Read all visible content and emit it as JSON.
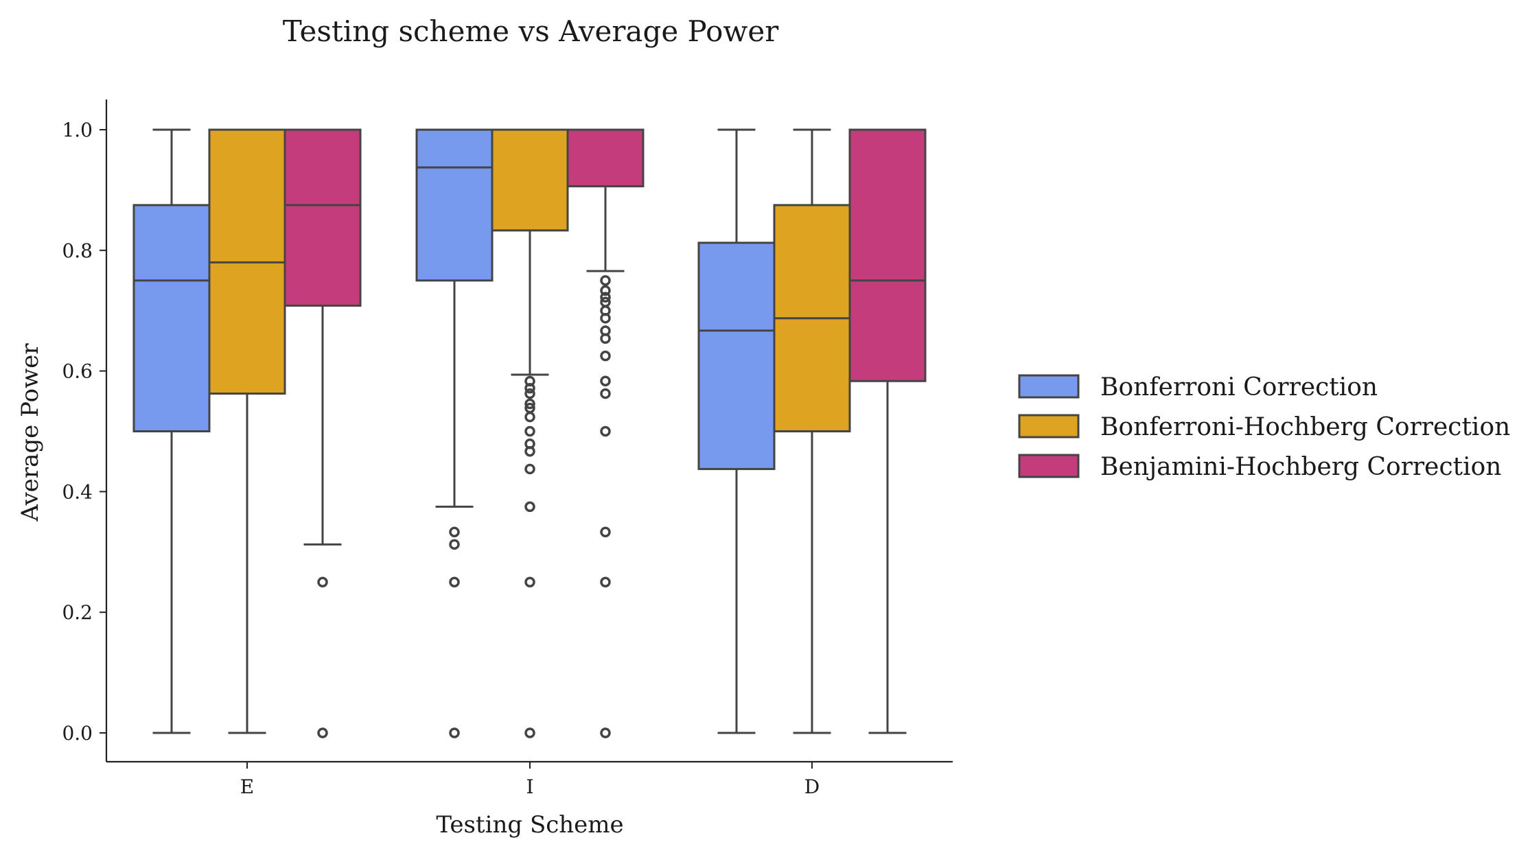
{
  "chart_data": {
    "type": "box",
    "title": "Testing scheme vs Average Power",
    "xlabel": "Testing Scheme",
    "ylabel": "Average Power",
    "categories": [
      "E",
      "I",
      "D"
    ],
    "ylim": [
      -0.05,
      1.05
    ],
    "yticks": [
      0.0,
      0.2,
      0.4,
      0.6,
      0.8,
      1.0
    ],
    "ytick_labels": [
      "0.0",
      "0.2",
      "0.4",
      "0.6",
      "0.8",
      "1.0"
    ],
    "legend_position": "right",
    "grid": false,
    "series": [
      {
        "name": "Bonferroni Correction",
        "color": "#7799ee",
        "boxes": [
          {
            "q1": 0.5,
            "median": 0.75,
            "q3": 0.875,
            "whisker_low": 0.0,
            "whisker_high": 1.0,
            "outliers": []
          },
          {
            "q1": 0.75,
            "median": 0.9375,
            "q3": 1.0,
            "whisker_low": 0.375,
            "whisker_high": 1.0,
            "outliers": [
              0.333,
              0.3125,
              0.25,
              0.0
            ]
          },
          {
            "q1": 0.4375,
            "median": 0.667,
            "q3": 0.8125,
            "whisker_low": 0.0,
            "whisker_high": 1.0,
            "outliers": []
          }
        ]
      },
      {
        "name": "Bonferroni-Hochberg Correction",
        "color": "#dfa322",
        "boxes": [
          {
            "q1": 0.5625,
            "median": 0.78,
            "q3": 1.0,
            "whisker_low": 0.0,
            "whisker_high": 1.0,
            "outliers": []
          },
          {
            "q1": 0.833,
            "median": 1.0,
            "q3": 1.0,
            "whisker_low": 0.5938,
            "whisker_high": 1.0,
            "outliers": [
              0.583,
              0.5714,
              0.5625,
              0.5455,
              0.5385,
              0.5238,
              0.5,
              0.4792,
              0.4667,
              0.4375,
              0.375,
              0.25,
              0.0
            ]
          },
          {
            "q1": 0.5,
            "median": 0.6875,
            "q3": 0.875,
            "whisker_low": 0.0,
            "whisker_high": 1.0,
            "outliers": []
          }
        ]
      },
      {
        "name": "Benjamini-Hochberg Correction",
        "color": "#c43c7b",
        "boxes": [
          {
            "q1": 0.7083,
            "median": 0.875,
            "q3": 1.0,
            "whisker_low": 0.3125,
            "whisker_high": 1.0,
            "outliers": [
              0.25,
              0.0
            ]
          },
          {
            "q1": 0.9062,
            "median": 1.0,
            "q3": 1.0,
            "whisker_low": 0.7656,
            "whisker_high": 1.0,
            "outliers": [
              0.75,
              0.7333,
              0.7222,
              0.7143,
              0.7,
              0.6875,
              0.6667,
              0.6538,
              0.625,
              0.5833,
              0.5625,
              0.5,
              0.333,
              0.25,
              0.0
            ]
          },
          {
            "q1": 0.5833,
            "median": 0.75,
            "q3": 1.0,
            "whisker_low": 0.0,
            "whisker_high": 1.0,
            "outliers": []
          }
        ]
      }
    ]
  }
}
